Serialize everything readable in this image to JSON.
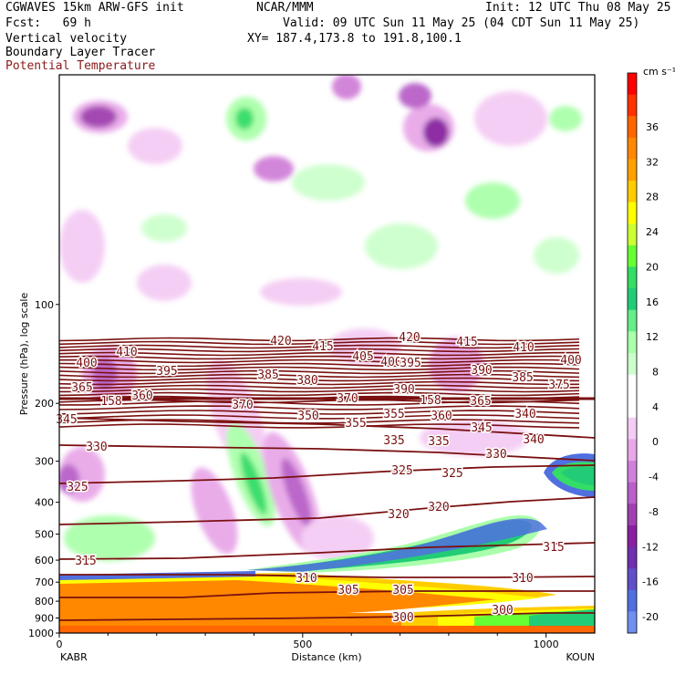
{
  "header": {
    "model": "CGWAVES 15km ARW-GFS init",
    "org": "NCAR/MMM",
    "init": "Init: 12 UTC Thu 08 May 25",
    "fcst": "Fcst:   69 h",
    "valid": "Valid: 09 UTC Sun 11 May 25 (04 CDT Sun 11 May 25)",
    "field1": "Vertical velocity",
    "xy": "XY= 187.4,173.8 to 191.8,100.1",
    "field2": "Boundary Layer Tracer",
    "field3": "Potential Temperature",
    "field3_color": "#8b1a1a"
  },
  "chart_data": {
    "type": "heatmap",
    "title": "Vertical velocity",
    "xlabel": "Distance (km)",
    "ylabel": "Pressure (hPa), log scale",
    "x_ticks": [
      "0",
      "500",
      "1000"
    ],
    "x_endpoints": [
      "KABR",
      "KOUN"
    ],
    "xlim": [
      0,
      1100
    ],
    "ylim_hpa": [
      1000,
      20
    ],
    "y_ticks": [
      "100",
      "200",
      "300",
      "400",
      "500",
      "600",
      "700",
      "800",
      "900",
      "1000"
    ],
    "colorbar": {
      "unit": "cm s⁻¹",
      "tick_labels": [
        "36",
        "32",
        "28",
        "24",
        "20",
        "16",
        "12",
        "8",
        "4",
        "0",
        "-4",
        "-8",
        "-12",
        "-16",
        "-20"
      ],
      "colors": [
        "#ff0000",
        "#ff3300",
        "#ff6600",
        "#ff8800",
        "#ffa000",
        "#ffcc00",
        "#ffff00",
        "#ccff33",
        "#66ff33",
        "#33dd66",
        "#22cc77",
        "#66ee88",
        "#aaffaa",
        "#ccffcc",
        "#ffffff",
        "#ffffff",
        "#f4ccf4",
        "#e8a8e8",
        "#d080d8",
        "#b860c8",
        "#a040b0",
        "#8820a0",
        "#7030b0",
        "#6050c8",
        "#5070e0",
        "#7090f0"
      ]
    },
    "contour_labels": [
      "420",
      "415",
      "420",
      "415",
      "410",
      "405",
      "400",
      "410",
      "400",
      "400",
      "395",
      "395",
      "390",
      "385",
      "380",
      "390",
      "385",
      "375",
      "365",
      "360",
      "370",
      "370",
      "365",
      "350",
      "355",
      "355",
      "360",
      "340",
      "345",
      "345",
      "335",
      "335",
      "340",
      "330",
      "330",
      "325",
      "325",
      "325",
      "320",
      "320",
      "315",
      "315",
      "310",
      "310",
      "305",
      "305",
      "300",
      "300",
      "158",
      "158"
    ],
    "potential_temperature_levels": [
      300,
      305,
      310,
      315,
      320,
      325,
      330,
      335,
      340,
      345,
      350,
      355,
      360,
      365,
      370,
      375,
      380,
      385,
      390,
      395,
      400,
      405,
      410,
      415,
      420
    ]
  }
}
